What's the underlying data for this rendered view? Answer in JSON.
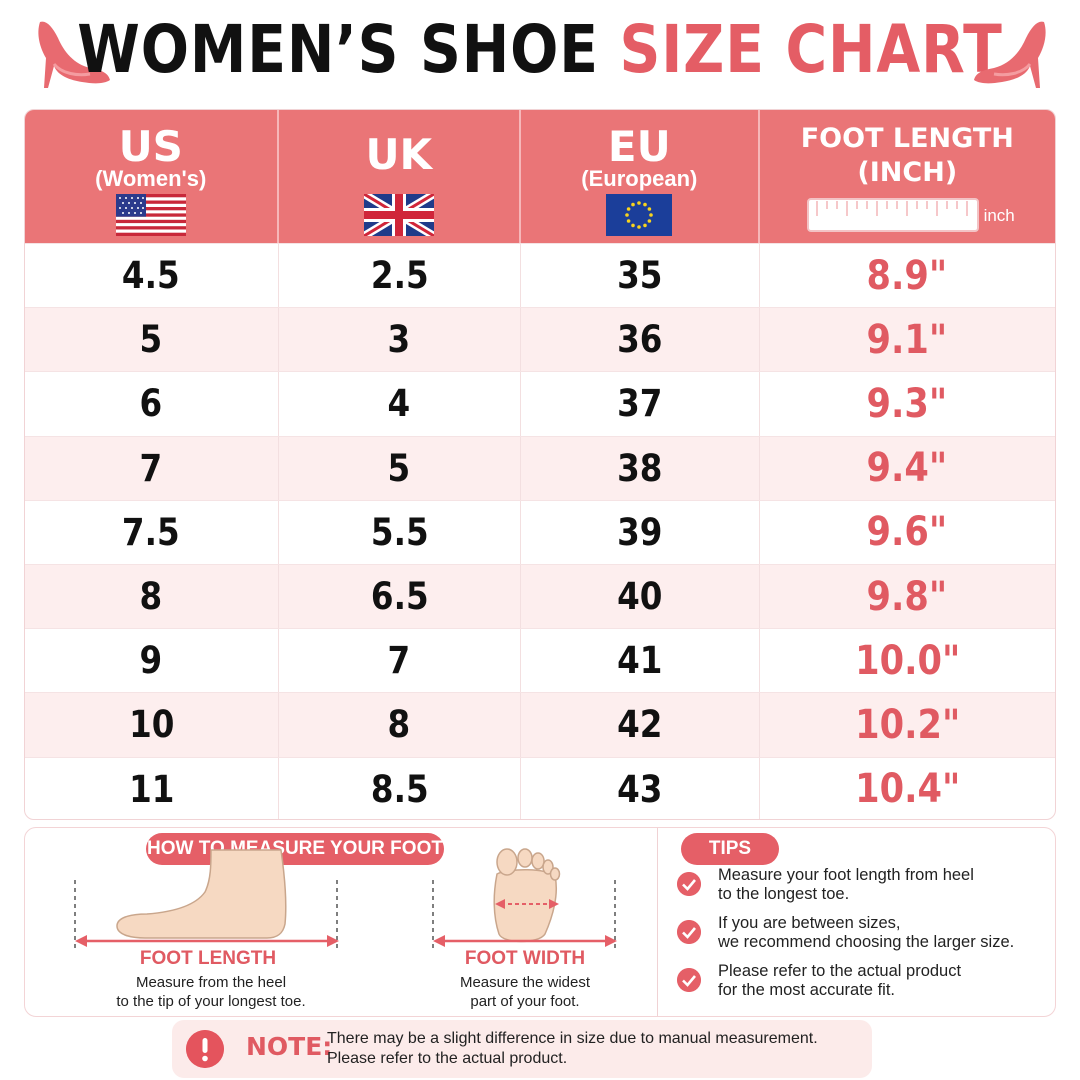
{
  "title": {
    "part1": "WOMEN’S SHOE",
    "part2": "SIZE CHART"
  },
  "colors": {
    "accent": "#e55f67",
    "header_bg": "#ea7577",
    "row_alt": "#fdeeee",
    "length_text": "#e05a62"
  },
  "table": {
    "headers": [
      {
        "main": "US",
        "sub": "(Women's)",
        "icon": "us-flag-icon"
      },
      {
        "main": "UK",
        "sub": "",
        "icon": "uk-flag-icon"
      },
      {
        "main": "EU",
        "sub": "(European)",
        "icon": "eu-flag-icon"
      },
      {
        "main_line1": "FOOT LENGTH",
        "main_line2": "(INCH)",
        "ruler_unit": "inch",
        "icon": "ruler-icon"
      }
    ],
    "rows": [
      {
        "us": "4.5",
        "uk": "2.5",
        "eu": "35",
        "length": "8.9\""
      },
      {
        "us": "5",
        "uk": "3",
        "eu": "36",
        "length": "9.1\""
      },
      {
        "us": "6",
        "uk": "4",
        "eu": "37",
        "length": "9.3\""
      },
      {
        "us": "7",
        "uk": "5",
        "eu": "38",
        "length": "9.4\""
      },
      {
        "us": "7.5",
        "uk": "5.5",
        "eu": "39",
        "length": "9.6\""
      },
      {
        "us": "8",
        "uk": "6.5",
        "eu": "40",
        "length": "9.8\""
      },
      {
        "us": "9",
        "uk": "7",
        "eu": "41",
        "length": "10.0\""
      },
      {
        "us": "10",
        "uk": "8",
        "eu": "42",
        "length": "10.2\""
      },
      {
        "us": "11",
        "uk": "8.5",
        "eu": "43",
        "length": "10.4\""
      }
    ]
  },
  "measure": {
    "heading": "HOW TO MEASURE YOUR FOOT",
    "length": {
      "label": "FOOT LENGTH",
      "desc_line1": "Measure from the heel",
      "desc_line2": "to the tip of your longest toe."
    },
    "width": {
      "label": "FOOT WIDTH",
      "desc_line1": "Measure the widest",
      "desc_line2": "part of your foot."
    }
  },
  "tips": {
    "heading": "TIPS",
    "items": [
      {
        "line1": "Measure your foot length from heel",
        "line2": "to the longest toe."
      },
      {
        "line1": "If you are between sizes,",
        "line2": "we recommend choosing the larger size."
      },
      {
        "line1": "Please refer to the actual product",
        "line2": "for the most accurate fit."
      }
    ]
  },
  "note": {
    "label": "NOTE:",
    "line1": "There may be a slight difference in size due to manual measurement.",
    "line2": "Please refer to the actual product."
  }
}
